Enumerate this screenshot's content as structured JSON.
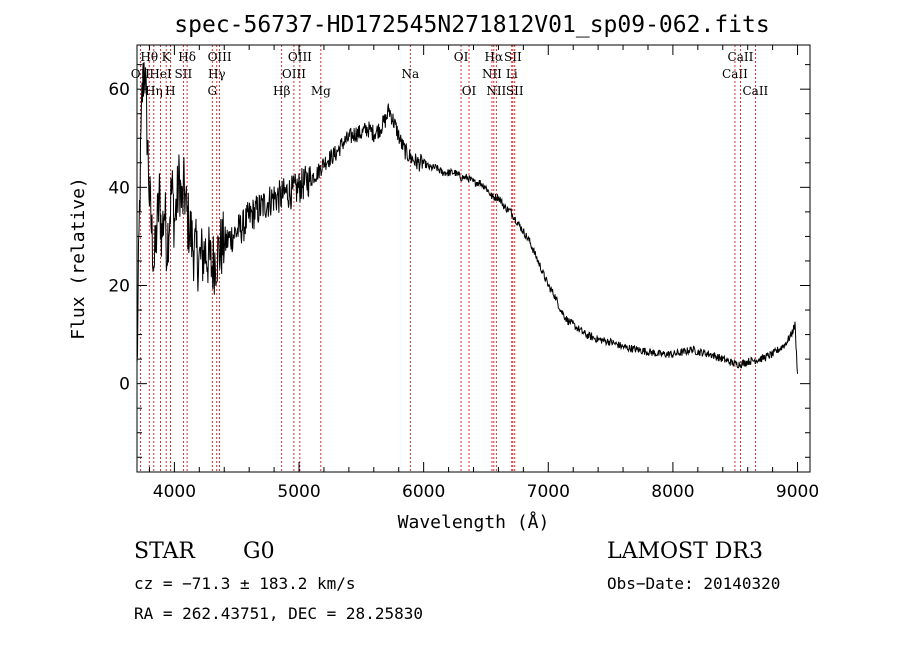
{
  "chart_data": {
    "type": "line",
    "title": "spec-56737-HD172545N271812V01_sp09-062.fits",
    "xlabel": "Wavelength (Å)",
    "ylabel": "Flux (relative)",
    "xlim": [
      3700,
      9100
    ],
    "ylim": [
      -18,
      69
    ],
    "xticks": [
      4000,
      5000,
      6000,
      7000,
      8000,
      9000
    ],
    "yticks": [
      0,
      20,
      40,
      60
    ],
    "series": [
      {
        "name": "flux",
        "x": [
          3700,
          3720,
          3740,
          3760,
          3780,
          3800,
          3820,
          3840,
          3860,
          3880,
          3900,
          3920,
          3940,
          3960,
          3980,
          4000,
          4020,
          4040,
          4060,
          4080,
          4100,
          4120,
          4150,
          4200,
          4250,
          4300,
          4340,
          4380,
          4420,
          4460,
          4500,
          4550,
          4600,
          4650,
          4700,
          4750,
          4800,
          4850,
          4900,
          4950,
          5000,
          5050,
          5100,
          5150,
          5200,
          5250,
          5300,
          5350,
          5400,
          5450,
          5500,
          5550,
          5600,
          5650,
          5700,
          5720,
          5750,
          5780,
          5820,
          5860,
          5900,
          5950,
          6000,
          6050,
          6100,
          6150,
          6200,
          6250,
          6300,
          6350,
          6400,
          6450,
          6500,
          6550,
          6600,
          6650,
          6700,
          6750,
          6800,
          6850,
          6900,
          6950,
          7000,
          7050,
          7100,
          7150,
          7200,
          7300,
          7400,
          7500,
          7600,
          7700,
          7800,
          7900,
          8000,
          8100,
          8150,
          8200,
          8300,
          8400,
          8500,
          8550,
          8600,
          8700,
          8800,
          8900,
          8950,
          8980,
          9000
        ],
        "y": [
          2,
          35,
          58,
          66,
          52,
          38,
          30,
          24,
          32,
          38,
          30,
          36,
          28,
          34,
          40,
          33,
          37,
          42,
          36,
          40,
          34,
          32,
          28,
          25,
          27,
          24,
          26,
          28,
          29,
          30,
          31,
          32,
          34,
          35,
          36,
          37,
          38,
          38,
          39,
          39,
          40,
          41,
          42,
          43,
          45,
          46,
          47,
          49,
          50,
          51,
          51,
          52,
          51,
          52,
          54,
          56,
          54,
          52,
          49,
          47,
          46,
          45,
          45,
          44,
          44,
          43,
          43,
          43,
          42,
          42,
          41,
          41,
          40,
          38,
          38,
          36,
          35,
          33,
          31,
          29,
          26,
          23,
          20,
          18,
          15,
          13,
          12,
          10,
          9,
          8.5,
          7.5,
          7,
          6.5,
          6,
          6,
          6.5,
          7,
          6.5,
          6,
          5,
          4,
          4,
          4.5,
          5,
          6,
          8,
          10,
          12,
          2
        ]
      }
    ],
    "lines": [
      {
        "label": "OII",
        "x": 3727,
        "row": 2
      },
      {
        "label": "Hθ",
        "x": 3798,
        "row": 1
      },
      {
        "label": "Hη",
        "x": 3835,
        "row": 3
      },
      {
        "label": "HeI",
        "x": 3889,
        "row": 2
      },
      {
        "label": "K",
        "x": 3934,
        "row": 1
      },
      {
        "label": "H",
        "x": 3968,
        "row": 3
      },
      {
        "label": "SII",
        "x": 4072,
        "row": 2
      },
      {
        "label": "Hδ",
        "x": 4102,
        "row": 1
      },
      {
        "label": "Hγ",
        "x": 4340,
        "row": 2
      },
      {
        "label": "G",
        "x": 4304,
        "row": 3
      },
      {
        "label": "OIII",
        "x": 4363,
        "row": 1
      },
      {
        "label": "Hβ",
        "x": 4861,
        "row": 3
      },
      {
        "label": "OIII",
        "x": 4959,
        "row": 2
      },
      {
        "label": "OIII",
        "x": 5007,
        "row": 1
      },
      {
        "label": "Mg",
        "x": 5175,
        "row": 3
      },
      {
        "label": "Na",
        "x": 5893,
        "row": 2
      },
      {
        "label": "OI",
        "x": 6300,
        "row": 1
      },
      {
        "label": "OI",
        "x": 6364,
        "row": 3
      },
      {
        "label": "NII",
        "x": 6548,
        "row": 2
      },
      {
        "label": "Hα",
        "x": 6563,
        "row": 1
      },
      {
        "label": "NII",
        "x": 6583,
        "row": 3
      },
      {
        "label": "Li",
        "x": 6707,
        "row": 2
      },
      {
        "label": "SII",
        "x": 6716,
        "row": 1
      },
      {
        "label": "SII",
        "x": 6731,
        "row": 3
      },
      {
        "label": "CaII",
        "x": 8498,
        "row": 2
      },
      {
        "label": "CaII",
        "x": 8542,
        "row": 1
      },
      {
        "label": "CaII",
        "x": 8662,
        "row": 3
      }
    ],
    "line_color": "#cc0000",
    "curve_color": "#000000"
  },
  "info": {
    "class": "STAR",
    "subclass": "G0",
    "survey": "LAMOST DR3",
    "cz": "cz = −71.3 ± 183.2 km/s",
    "obsdate": "Obs−Date: 20140320",
    "radec": "RA = 262.43751, DEC =  28.25830"
  }
}
